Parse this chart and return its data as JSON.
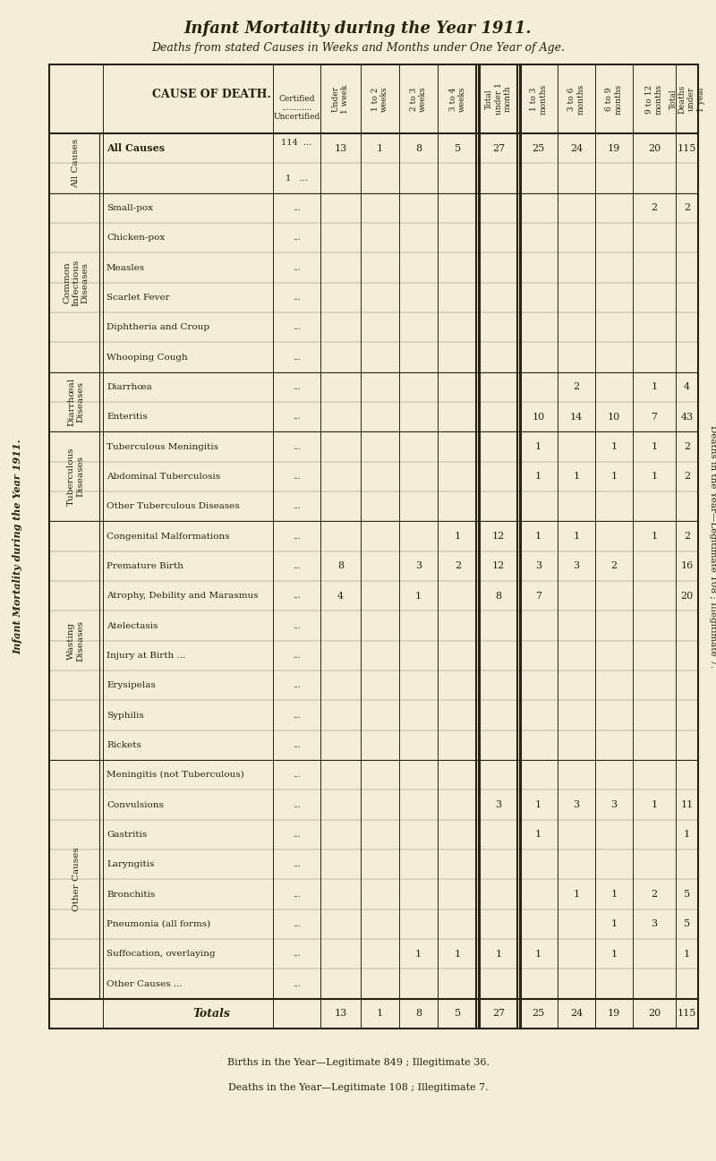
{
  "title": "Infant Mortality during the Year 1911.",
  "subtitle": "Deaths from stated Causes in Weeks and Months under One Year of Age.",
  "bg_color": "#f5edd8",
  "text_color": "#2a2010",
  "footer1": "Births in the Year—Legitimate 849 ; Illegitimate 36.",
  "footer2": "Deaths in the Year—Legitimate 108 ; Illegitimate 7.",
  "row_groups": [
    {
      "group_label": "All Causes",
      "rows": [
        {
          "label": "Certified",
          "cert": "114 ...",
          "under1w": "13",
          "w1to2": "1",
          "w2to3": "8",
          "w3to4": "5",
          "total_under1m": "27",
          "m1to3": "25",
          "m3to6": "24",
          "m6to9": "19",
          "m9to12": "20",
          "total": "115"
        },
        {
          "label": "Uncertified",
          "cert": "1 ...",
          "under1w": "",
          "w1to2": "",
          "w2to3": "",
          "w3to4": "",
          "total_under1m": "",
          "m1to3": "",
          "m3to6": "",
          "m6to9": "",
          "m9to12": "",
          "total": ""
        }
      ]
    },
    {
      "group_label": "Common\nInfectious\nDiseases",
      "rows": [
        {
          "label": "Small-pox",
          "cert": "...",
          "under1w": "",
          "w1to2": "",
          "w2to3": "",
          "w3to4": "",
          "total_under1m": "",
          "m1to3": "",
          "m3to6": "",
          "m6to9": "",
          "m9to12": "2",
          "total": "2"
        },
        {
          "label": "Chicken-pox",
          "cert": "...",
          "under1w": "",
          "w1to2": "",
          "w2to3": "",
          "w3to4": "",
          "total_under1m": "",
          "m1to3": "",
          "m3to6": "",
          "m6to9": "",
          "m9to12": "",
          "total": ""
        },
        {
          "label": "Measles",
          "cert": "...",
          "under1w": "",
          "w1to2": "",
          "w2to3": "",
          "w3to4": "",
          "total_under1m": "",
          "m1to3": "",
          "m3to6": "",
          "m6to9": "",
          "m9to12": "",
          "total": ""
        },
        {
          "label": "Scarlet Fever",
          "cert": "...",
          "under1w": "",
          "w1to2": "",
          "w2to3": "",
          "w3to4": "",
          "total_under1m": "",
          "m1to3": "",
          "m3to6": "",
          "m6to9": "",
          "m9to12": "",
          "total": ""
        },
        {
          "label": "Diphtheria and Croup",
          "cert": "...",
          "under1w": "",
          "w1to2": "",
          "w2to3": "",
          "w3to4": "",
          "total_under1m": "",
          "m1to3": "",
          "m3to6": "",
          "m6to9": "",
          "m9to12": "",
          "total": ""
        },
        {
          "label": "Whooping Cough",
          "cert": "...",
          "under1w": "",
          "w1to2": "",
          "w2to3": "",
          "w3to4": "",
          "total_under1m": "",
          "m1to3": "",
          "m3to6": "",
          "m6to9": "",
          "m9to12": "",
          "total": ""
        }
      ]
    },
    {
      "group_label": "Diarrhœal\nDiseases",
      "rows": [
        {
          "label": "Diarrhœa",
          "cert": "...",
          "under1w": "",
          "w1to2": "",
          "w2to3": "",
          "w3to4": "",
          "total_under1m": "",
          "m1to3": "",
          "m3to6": "2",
          "m6to9": "",
          "m9to12": "1",
          "total": "4"
        },
        {
          "label": "Enteritis",
          "cert": "...",
          "under1w": "",
          "w1to2": "",
          "w2to3": "",
          "w3to4": "",
          "total_under1m": "",
          "m1to3": "10",
          "m3to6": "14",
          "m6to9": "10",
          "m9to12": "7",
          "total": "43"
        }
      ]
    },
    {
      "group_label": "Tuberculous\nDiseases",
      "rows": [
        {
          "label": "Tuberculous Meningitis",
          "cert": "...",
          "under1w": "",
          "w1to2": "",
          "w2to3": "",
          "w3to4": "",
          "total_under1m": "",
          "m1to3": "1",
          "m3to6": "",
          "m6to9": "1",
          "m9to12": "1",
          "total": "2"
        },
        {
          "label": "Abdominal Tuberculosis",
          "cert": "...",
          "under1w": "",
          "w1to2": "",
          "w2to3": "",
          "w3to4": "",
          "total_under1m": "",
          "m1to3": "1",
          "m3to6": "1",
          "m6to9": "1",
          "m9to12": "1",
          "total": "2"
        },
        {
          "label": "Other Tuberculous Diseases",
          "cert": "...",
          "under1w": "",
          "w1to2": "",
          "w2to3": "",
          "w3to4": "",
          "total_under1m": "",
          "m1to3": "",
          "m3to6": "",
          "m6to9": "",
          "m9to12": "",
          "total": ""
        }
      ]
    },
    {
      "group_label": "Wasting\nDiseases",
      "rows": [
        {
          "label": "Congenital Malformations",
          "cert": "...",
          "under1w": "",
          "w1to2": "",
          "w2to3": "",
          "w3to4": "1",
          "total_under1m": "12",
          "m1to3": "1",
          "m3to6": "1",
          "m6to9": "",
          "m9to12": "1",
          "total": "2"
        },
        {
          "label": "Premature Birth",
          "cert": "...",
          "under1w": "8",
          "w1to2": "",
          "w2to3": "3",
          "w3to4": "2",
          "total_under1m": "12",
          "m1to3": "3",
          "m3to6": "3",
          "m6to9": "2",
          "m9to12": "",
          "total": "16"
        },
        {
          "label": "Atrophy, Debility and Marasmus",
          "cert": "...",
          "under1w": "4",
          "w1to2": "",
          "w2to3": "1",
          "w3to4": "",
          "total_under1m": "8",
          "m1to3": "7",
          "m3to6": "",
          "m6to9": "",
          "m9to12": "",
          "total": "20"
        },
        {
          "label": "Atelectasis",
          "cert": "...",
          "under1w": "",
          "w1to2": "",
          "w2to3": "",
          "w3to4": "",
          "total_under1m": "",
          "m1to3": "",
          "m3to6": "",
          "m6to9": "",
          "m9to12": "",
          "total": ""
        },
        {
          "label": "Injury at Birth ...",
          "cert": "...",
          "under1w": "",
          "w1to2": "",
          "w2to3": "",
          "w3to4": "",
          "total_under1m": "",
          "m1to3": "",
          "m3to6": "",
          "m6to9": "",
          "m9to12": "",
          "total": ""
        },
        {
          "label": "Erysipelas",
          "cert": "...",
          "under1w": "",
          "w1to2": "",
          "w2to3": "",
          "w3to4": "",
          "total_under1m": "",
          "m1to3": "",
          "m3to6": "",
          "m6to9": "",
          "m9to12": "",
          "total": ""
        },
        {
          "label": "Syphilis",
          "cert": "...",
          "under1w": "",
          "w1to2": "",
          "w2to3": "",
          "w3to4": "",
          "total_under1m": "",
          "m1to3": "",
          "m3to6": "",
          "m6to9": "",
          "m9to12": "",
          "total": ""
        },
        {
          "label": "Rickets",
          "cert": "...",
          "under1w": "",
          "w1to2": "",
          "w2to3": "",
          "w3to4": "",
          "total_under1m": "",
          "m1to3": "",
          "m3to6": "",
          "m6to9": "",
          "m9to12": "",
          "total": ""
        }
      ]
    },
    {
      "group_label": "Other Causes",
      "rows": [
        {
          "label": "Meningitis (not Tuberculous)",
          "cert": "...",
          "under1w": "",
          "w1to2": "",
          "w2to3": "",
          "w3to4": "",
          "total_under1m": "",
          "m1to3": "",
          "m3to6": "",
          "m6to9": "",
          "m9to12": "",
          "total": ""
        },
        {
          "label": "Convulsions",
          "cert": "...",
          "under1w": "",
          "w1to2": "",
          "w2to3": "",
          "w3to4": "",
          "total_under1m": "3",
          "m1to3": "1",
          "m3to6": "3",
          "m6to9": "3",
          "m9to12": "1",
          "total": "11"
        },
        {
          "label": "Gastritis",
          "cert": "...",
          "under1w": "",
          "w1to2": "",
          "w2to3": "",
          "w3to4": "",
          "total_under1m": "",
          "m1to3": "1",
          "m3to6": "",
          "m6to9": "",
          "m9to12": "",
          "total": "1"
        },
        {
          "label": "Laryngitis",
          "cert": "...",
          "under1w": "",
          "w1to2": "",
          "w2to3": "",
          "w3to4": "",
          "total_under1m": "",
          "m1to3": "",
          "m3to6": "",
          "m6to9": "",
          "m9to12": "",
          "total": ""
        },
        {
          "label": "Bronchitis",
          "cert": "...",
          "under1w": "",
          "w1to2": "",
          "w2to3": "",
          "w3to4": "",
          "total_under1m": "",
          "m1to3": "",
          "m3to6": "1",
          "m6to9": "1",
          "m9to12": "2",
          "total": "5"
        },
        {
          "label": "Pneumonia (all forms)",
          "cert": "...",
          "under1w": "",
          "w1to2": "",
          "w2to3": "",
          "w3to4": "",
          "total_under1m": "",
          "m1to3": "",
          "m3to6": "",
          "m6to9": "1",
          "m9to12": "3",
          "total": "5"
        },
        {
          "label": "Suffocation, overlaying",
          "cert": "...",
          "under1w": "",
          "w1to2": "",
          "w2to3": "1",
          "w3to4": "1",
          "total_under1m": "1",
          "m1to3": "1",
          "m3to6": "",
          "m6to9": "1",
          "m9to12": "",
          "total": "1"
        },
        {
          "label": "Other Causes ...",
          "cert": "...",
          "under1w": "",
          "w1to2": "",
          "w2to3": "",
          "w3to4": "",
          "total_under1m": "",
          "m1to3": "",
          "m3to6": "",
          "m6to9": "",
          "m9to12": "",
          "total": ""
        }
      ]
    },
    {
      "group_label": "TOTALS",
      "rows": [
        {
          "label": "Totals",
          "cert": "...",
          "under1w": "13",
          "w1to2": "1",
          "w2to3": "8",
          "w3to4": "5",
          "total_under1m": "27",
          "m1to3": "25",
          "m3to6": "24",
          "m6to9": "19",
          "m9to12": "20",
          "total": "115"
        }
      ]
    }
  ]
}
